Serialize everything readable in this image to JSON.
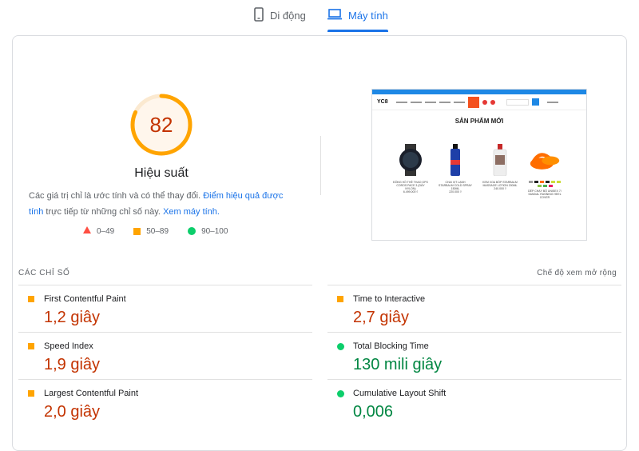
{
  "tabs": [
    {
      "label": "Di động",
      "icon": "phone-icon",
      "active": false
    },
    {
      "label": "Máy tính",
      "icon": "desktop-icon",
      "active": true
    }
  ],
  "summary": {
    "score": "82",
    "score_fraction": 0.82,
    "score_color": "#ffa400",
    "title": "Hiệu suất",
    "desc_pre": "Các giá trị chỉ là ước tính và có thể thay đổi.",
    "desc_link1": "Điểm hiệu quả được tính",
    "desc_mid": "trực tiếp từ những chỉ số này.",
    "desc_link2": "Xem máy tính."
  },
  "legend": [
    {
      "range": "0–49",
      "color": "#ff4e42",
      "shape": "triangle"
    },
    {
      "range": "50–89",
      "color": "#ffa400",
      "shape": "square"
    },
    {
      "range": "90–100",
      "color": "#0cce6b",
      "shape": "circle"
    }
  ],
  "preview": {
    "logo": "YC8",
    "heading": "SẢN PHẨM MỚI",
    "products": [
      {
        "name": "ĐỒNG HỒ THỂ THAO GPS COROS PACE 3 (DÂY NYLON)",
        "price": "6.499.000 ₫",
        "icon": "watch-icon"
      },
      {
        "name": "CHAI XỊT LẠNH STARBALM COLD SPRAY 150ML",
        "price": "220.000 ₫",
        "icon": "spray-icon"
      },
      {
        "name": "KEM XOA BÓP STARBALM MASSAGE LOTION 200ML",
        "price": "240.000 ₫",
        "icon": "lotion-icon"
      },
      {
        "name": "DÉP CHẠY BỘ UNISEX 7/ SANDAL RUNNING HEEL COVER",
        "price": "",
        "icon": "sandal-icon"
      }
    ]
  },
  "metrics": {
    "heading": "CÁC CHỈ SỐ",
    "expand_label": "Chế độ xem mở rộng",
    "left": [
      {
        "title": "First Contentful Paint",
        "value": "1,2 giây",
        "rating": "average"
      },
      {
        "title": "Speed Index",
        "value": "1,9 giây",
        "rating": "average"
      },
      {
        "title": "Largest Contentful Paint",
        "value": "2,0 giây",
        "rating": "average"
      }
    ],
    "right": [
      {
        "title": "Time to Interactive",
        "value": "2,7 giây",
        "rating": "average"
      },
      {
        "title": "Total Blocking Time",
        "value": "130 mili giây",
        "rating": "good"
      },
      {
        "title": "Cumulative Layout Shift",
        "value": "0,006",
        "rating": "good"
      }
    ]
  }
}
